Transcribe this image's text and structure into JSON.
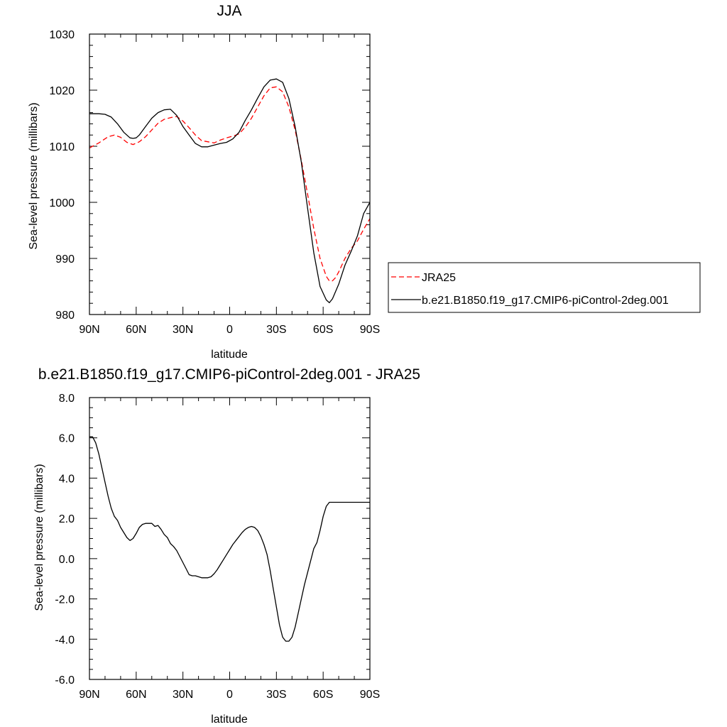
{
  "chart_data": [
    {
      "type": "line",
      "title": "JJA",
      "xlabel": "latitude",
      "ylabel": "Sea-level pressure (millibars)",
      "xlim": [
        90,
        -90
      ],
      "ylim": [
        980,
        1030
      ],
      "yticks": [
        980,
        990,
        1000,
        1010,
        1020,
        1030
      ],
      "ytick_labels": [
        "980",
        "990",
        "1000",
        "1010",
        "1020",
        "1030"
      ],
      "xticks": [
        90,
        60,
        30,
        0,
        -30,
        -60,
        -90
      ],
      "xtick_labels": [
        "90N",
        "60N",
        "30N",
        "0",
        "30S",
        "60S",
        "90S"
      ],
      "legend_position": "right-outside",
      "series": [
        {
          "name": "JRA25",
          "color": "#ff0000",
          "dash": "dashed",
          "x": [
            90,
            84,
            78,
            74,
            70,
            66,
            62,
            58,
            54,
            50,
            46,
            42,
            38,
            34,
            30,
            26,
            22,
            18,
            14,
            10,
            6,
            2,
            -2,
            -6,
            -10,
            -14,
            -18,
            -22,
            -26,
            -30,
            -34,
            -38,
            -42,
            -46,
            -50,
            -54,
            -58,
            -62,
            -64,
            -66,
            -68,
            -70,
            -74,
            -78,
            -82,
            -86,
            -90
          ],
          "y": [
            1009.7,
            1010.6,
            1011.7,
            1012.0,
            1011.6,
            1010.7,
            1010.3,
            1010.8,
            1011.7,
            1012.9,
            1014.1,
            1014.8,
            1015.1,
            1015.3,
            1014.5,
            1013.3,
            1012.0,
            1011.0,
            1010.8,
            1010.6,
            1011.1,
            1011.5,
            1011.8,
            1012.2,
            1013.4,
            1015.0,
            1017.0,
            1019.0,
            1020.4,
            1020.6,
            1019.7,
            1017.0,
            1012.9,
            1007.5,
            1001.5,
            995.3,
            990.0,
            986.8,
            986.0,
            986.0,
            986.6,
            987.6,
            990.0,
            991.8,
            993.1,
            995.2,
            997.1
          ]
        },
        {
          "name": "b.e21.B1850.f19_g17.CMIP6-piControl-2deg.001",
          "color": "#000000",
          "dash": "solid",
          "x": [
            90,
            84,
            80,
            76,
            72,
            68,
            64,
            62,
            60,
            58,
            54,
            50,
            46,
            42,
            38,
            34,
            30,
            26,
            22,
            18,
            14,
            10,
            6,
            2,
            -2,
            -6,
            -10,
            -14,
            -18,
            -22,
            -26,
            -30,
            -34,
            -38,
            -42,
            -46,
            -50,
            -54,
            -58,
            -62,
            -64,
            -66,
            -70,
            -74,
            -78,
            -82,
            -86,
            -90
          ],
          "y": [
            1015.8,
            1015.8,
            1015.7,
            1015.2,
            1014.0,
            1012.5,
            1011.5,
            1011.4,
            1011.5,
            1012.0,
            1013.5,
            1015.0,
            1016.0,
            1016.5,
            1016.6,
            1015.5,
            1013.5,
            1012.0,
            1010.5,
            1009.9,
            1009.9,
            1010.2,
            1010.5,
            1010.7,
            1011.3,
            1012.5,
            1014.6,
            1016.5,
            1018.6,
            1020.6,
            1021.8,
            1022.0,
            1021.4,
            1018.5,
            1013.5,
            1007.2,
            999.0,
            991.0,
            985.0,
            982.6,
            982.1,
            982.8,
            985.4,
            988.8,
            991.3,
            994.0,
            998.0,
            1000.0
          ]
        }
      ]
    },
    {
      "type": "line",
      "title": "b.e21.B1850.f19_g17.CMIP6-piControl-2deg.001 - JRA25",
      "xlabel": "latitude",
      "ylabel": "Sea-level pressure (millibars)",
      "xlim": [
        90,
        -90
      ],
      "ylim": [
        -6.0,
        8.0
      ],
      "yticks": [
        -6.0,
        -4.0,
        -2.0,
        0.0,
        2.0,
        4.0,
        6.0,
        8.0
      ],
      "ytick_labels": [
        "-6.0",
        "-4.0",
        "-2.0",
        "0.0",
        "2.0",
        "4.0",
        "6.0",
        "8.0"
      ],
      "xticks": [
        90,
        60,
        30,
        0,
        -30,
        -60,
        -90
      ],
      "xtick_labels": [
        "90N",
        "60N",
        "30N",
        "0",
        "30S",
        "60S",
        "90S"
      ],
      "series": [
        {
          "color": "#000000",
          "dash": "solid",
          "x": [
            90,
            88,
            86,
            84,
            82,
            80,
            78,
            76,
            74,
            72,
            70,
            68,
            66,
            64,
            62,
            60,
            58,
            56,
            54,
            52,
            50,
            48,
            46,
            44,
            42,
            40,
            38,
            36,
            34,
            32,
            30,
            28,
            26,
            24,
            22,
            20,
            18,
            16,
            14,
            12,
            10,
            8,
            6,
            4,
            2,
            0,
            -2,
            -4,
            -6,
            -8,
            -10,
            -12,
            -14,
            -16,
            -18,
            -20,
            -22,
            -24,
            -26,
            -28,
            -30,
            -32,
            -34,
            -36,
            -38,
            -40,
            -42,
            -44,
            -46,
            -48,
            -50,
            -52,
            -54,
            -56,
            -58,
            -60,
            -62,
            -64,
            -66,
            -68,
            -70,
            -72,
            -74,
            -76,
            -78,
            -80,
            -82,
            -84,
            -86,
            -88,
            -90
          ],
          "y": [
            6.05,
            6.05,
            5.75,
            5.2,
            4.5,
            3.8,
            3.1,
            2.5,
            2.1,
            1.9,
            1.55,
            1.3,
            1.05,
            0.9,
            1.0,
            1.25,
            1.55,
            1.7,
            1.75,
            1.75,
            1.75,
            1.6,
            1.65,
            1.45,
            1.2,
            1.05,
            0.75,
            0.6,
            0.4,
            0.1,
            -0.2,
            -0.5,
            -0.8,
            -0.85,
            -0.85,
            -0.9,
            -0.95,
            -0.95,
            -0.95,
            -0.9,
            -0.75,
            -0.55,
            -0.3,
            -0.05,
            0.2,
            0.45,
            0.7,
            0.9,
            1.1,
            1.3,
            1.45,
            1.55,
            1.6,
            1.55,
            1.4,
            1.1,
            0.7,
            0.2,
            -0.6,
            -1.5,
            -2.4,
            -3.3,
            -3.9,
            -4.1,
            -4.1,
            -3.9,
            -3.4,
            -2.7,
            -2.0,
            -1.3,
            -0.7,
            -0.1,
            0.5,
            0.8,
            1.4,
            2.1,
            2.6,
            2.8,
            2.8,
            2.8,
            2.8,
            2.8,
            2.8,
            2.8,
            2.8,
            2.8,
            2.8,
            2.8,
            2.8,
            2.8,
            2.8
          ]
        }
      ]
    }
  ]
}
